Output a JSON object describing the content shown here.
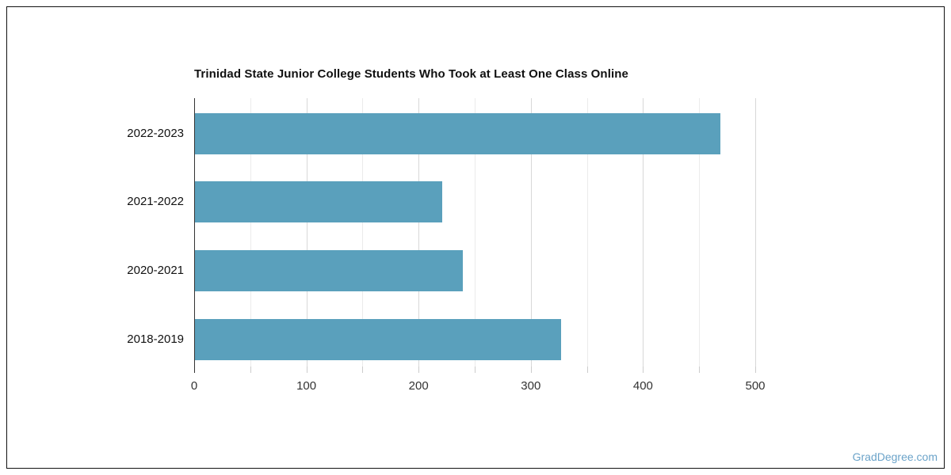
{
  "chart_data": {
    "type": "bar",
    "orientation": "horizontal",
    "title": "Trinidad State Junior College Students Who Took at Least One Class Online",
    "categories": [
      "2022-2023",
      "2021-2022",
      "2020-2021",
      "2018-2019"
    ],
    "values": [
      468,
      220,
      239,
      326
    ],
    "xlabel": "",
    "ylabel": "",
    "xlim": [
      0,
      500
    ],
    "x_ticks": [
      0,
      100,
      200,
      300,
      400,
      500
    ],
    "minor_tick_step": 50,
    "grid": true,
    "legend": false,
    "bar_color": "#5aa0bc"
  },
  "watermark": {
    "label": "GradDegree.com",
    "color": "#6ba3c9"
  },
  "colors": {
    "background": "#ffffff",
    "frame_border": "#111111",
    "axis_line": "#333333",
    "grid_major": "#d8d8d8",
    "grid_minor": "#ebebeb",
    "tick_mark": "#cccccc",
    "title_text": "#111111",
    "category_text": "#111111",
    "tick_label_text": "#333333"
  }
}
